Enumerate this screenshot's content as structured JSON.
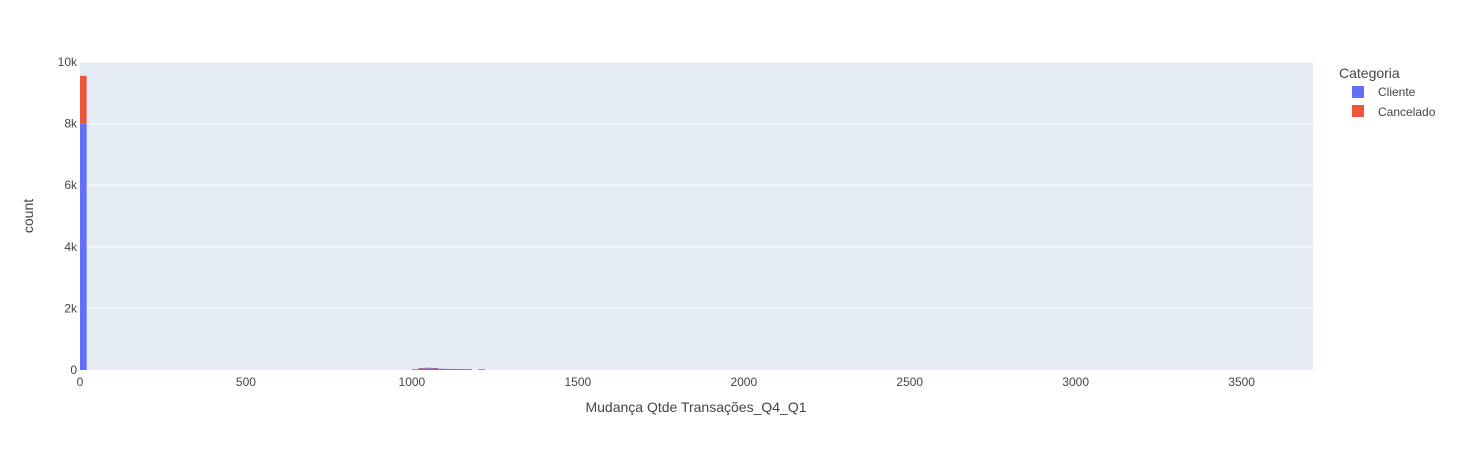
{
  "chart_data": {
    "type": "bar",
    "barmode": "stack",
    "xlabel": "Mudança Qtde Transações_Q4_Q1",
    "ylabel": "count",
    "xlim": [
      0,
      3715
    ],
    "ylim": [
      0,
      10000
    ],
    "x_ticks": [
      0,
      500,
      1000,
      1500,
      2000,
      2500,
      3000,
      3500
    ],
    "x_tick_labels": [
      "0",
      "500",
      "1000",
      "1500",
      "2000",
      "2500",
      "3000",
      "3500"
    ],
    "y_ticks": [
      0,
      2000,
      4000,
      6000,
      8000,
      10000
    ],
    "y_tick_labels": [
      "0",
      "2k",
      "4k",
      "6k",
      "8k",
      "10k"
    ],
    "grid": true,
    "legend": {
      "title": "Categoria",
      "position": "top-right"
    },
    "series": [
      {
        "name": "Cliente",
        "color": "#636efa",
        "bins": [
          {
            "x0": 0,
            "x1": 20,
            "value": 8000
          },
          {
            "x0": 1000,
            "x1": 1020,
            "value": 25
          },
          {
            "x0": 1020,
            "x1": 1040,
            "value": 50
          },
          {
            "x0": 1040,
            "x1": 1060,
            "value": 60
          },
          {
            "x0": 1060,
            "x1": 1080,
            "value": 55
          },
          {
            "x0": 1080,
            "x1": 1100,
            "value": 40
          },
          {
            "x0": 1100,
            "x1": 1120,
            "value": 35
          },
          {
            "x0": 1120,
            "x1": 1140,
            "value": 30
          },
          {
            "x0": 1140,
            "x1": 1160,
            "value": 30
          },
          {
            "x0": 1160,
            "x1": 1180,
            "value": 28
          }
        ]
      },
      {
        "name": "Cancelado",
        "color": "#ef553b",
        "bins": [
          {
            "x0": 0,
            "x1": 20,
            "value": 1550
          },
          {
            "x0": 1020,
            "x1": 1040,
            "value": 12
          },
          {
            "x0": 1040,
            "x1": 1060,
            "value": 14
          },
          {
            "x0": 1060,
            "x1": 1080,
            "value": 10
          },
          {
            "x0": 1200,
            "x1": 1220,
            "value": 25
          }
        ]
      }
    ]
  }
}
